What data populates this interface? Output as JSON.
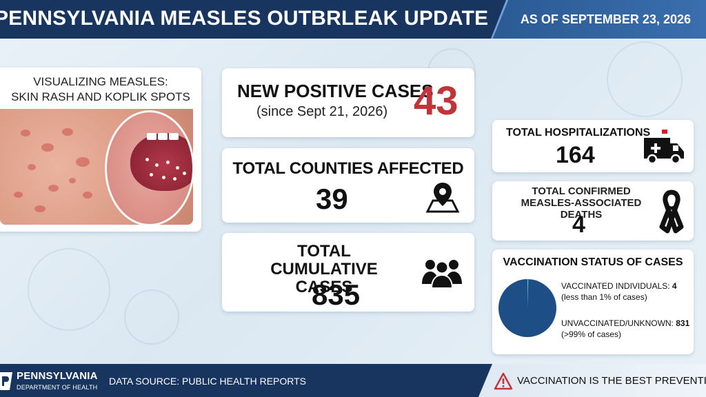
{
  "header": {
    "title": "PENNSYLVANIA MEASLES OUTBRLEAK UPDATE",
    "date": "AS OF SEPTEMBER 23, 2026"
  },
  "image_panel": {
    "title_line1": "VISUALIZING MEASLES:",
    "title_line2": "SKIN RASH AND KOPLIK SPOTS"
  },
  "new_cases": {
    "label": "NEW POSITIVE CASES",
    "sub": "(since Sept 21, 2026)",
    "value": "43"
  },
  "counties": {
    "label": "TOTAL COUNTIES AFFECTED",
    "value": "39",
    "icon": "map-pin-icon"
  },
  "cumulative": {
    "label_line1": "TOTAL CUMULATIVE",
    "label_line2": "CASES",
    "value": "835",
    "icon": "people-group-icon"
  },
  "hospitalizations": {
    "label": "TOTAL HOSPITALIZATIONS",
    "value": "164",
    "icon": "ambulance-icon"
  },
  "deaths": {
    "label_line1": "TOTAL CONFIRMED",
    "label_line2": "MEASLES-ASSOCIATED DEATHS",
    "value": "4",
    "icon": "awareness-ribbon-icon"
  },
  "vaccination": {
    "title": "VACCINATION STATUS OF CASES",
    "vaccinated_label": "VACCINATED INDIVIDUALS: ",
    "vaccinated_value": "4",
    "vaccinated_note": "(less than 1% of cases)",
    "unvaccinated_label": "UNVACCINATED/UNKNOWN: ",
    "unvaccinated_value": "831",
    "unvaccinated_note": "(>99% of cases)",
    "colors": {
      "vaccinated": "#5ec8c0",
      "unvaccinated": "#1d4f86"
    }
  },
  "footer": {
    "org_name": "PENNSYLVANIA",
    "org_dept": "DEPARTMENT OF HEALTH",
    "source": "DATA SOURCE: PUBLIC HEALTH REPORTS",
    "slogan": "VACCINATION IS THE BEST PREVENTION",
    "icon": "warning-triangle-icon"
  },
  "colors": {
    "navy": "#17355f",
    "accent_red": "#c0343a"
  }
}
